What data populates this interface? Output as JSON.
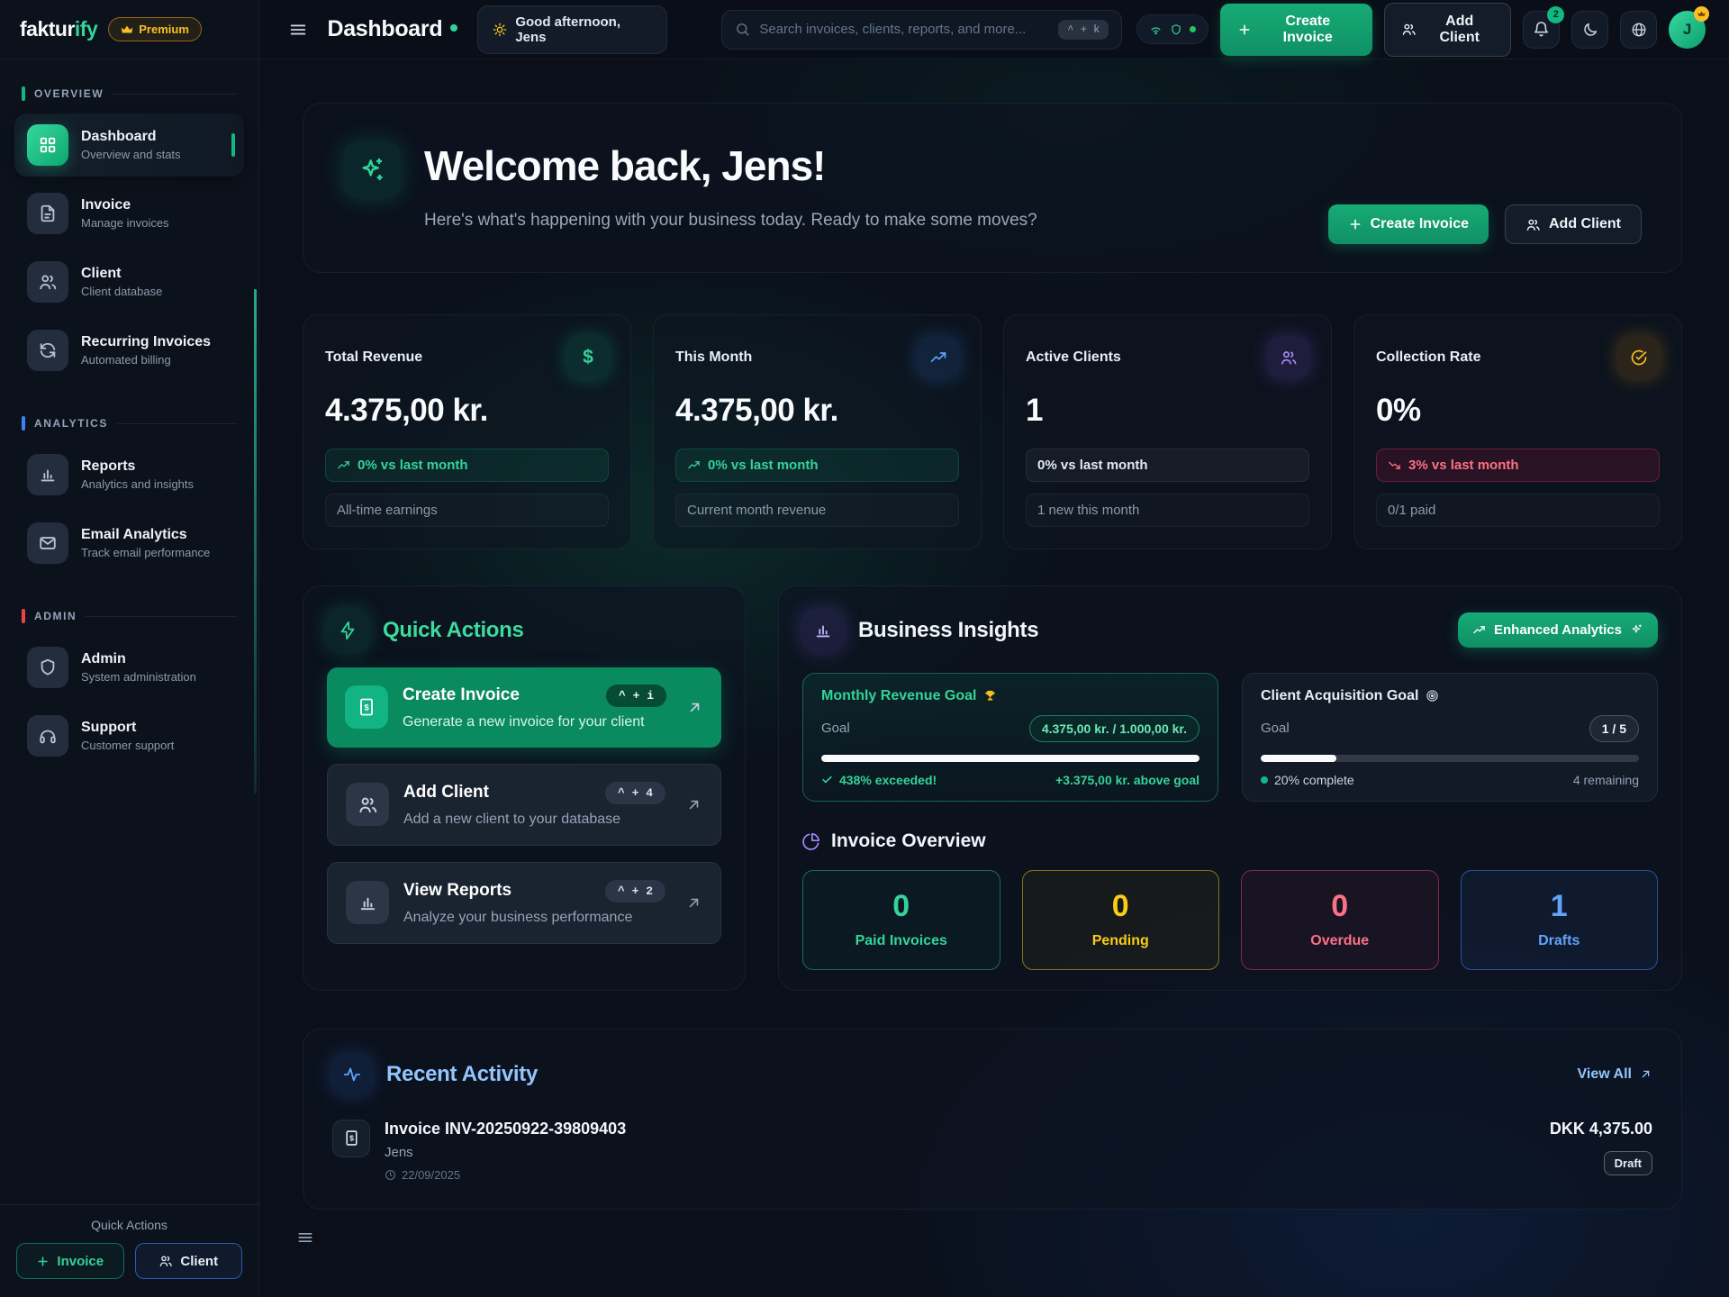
{
  "brand": {
    "name": "faktur",
    "name_accent": "ify",
    "premium_label": "Premium"
  },
  "header": {
    "title": "Dashboard",
    "greeting": "Good afternoon, Jens",
    "search_placeholder": "Search invoices, clients, reports, and more...",
    "search_shortcut": "^ + k",
    "create_invoice_label": "Create Invoice",
    "add_client_label": "Add Client",
    "notification_count": "2",
    "avatar_initial": "J"
  },
  "sidebar": {
    "sections": [
      {
        "label": "OVERVIEW",
        "items": [
          {
            "title": "Dashboard",
            "subtitle": "Overview and stats"
          },
          {
            "title": "Invoice",
            "subtitle": "Manage invoices"
          },
          {
            "title": "Client",
            "subtitle": "Client database"
          },
          {
            "title": "Recurring Invoices",
            "subtitle": "Automated billing"
          }
        ]
      },
      {
        "label": "ANALYTICS",
        "items": [
          {
            "title": "Reports",
            "subtitle": "Analytics and insights"
          },
          {
            "title": "Email Analytics",
            "subtitle": "Track email performance"
          }
        ]
      },
      {
        "label": "ADMIN",
        "items": [
          {
            "title": "Admin",
            "subtitle": "System administration"
          },
          {
            "title": "Support",
            "subtitle": "Customer support"
          }
        ]
      }
    ],
    "footer": {
      "label": "Quick Actions",
      "invoice_button": "Invoice",
      "client_button": "Client"
    }
  },
  "welcome": {
    "title": "Welcome back, Jens!",
    "subtitle": "Here's what's happening with your business today. Ready to make some moves?",
    "create_invoice_label": "Create Invoice",
    "add_client_label": "Add Client"
  },
  "stats": [
    {
      "label": "Total Revenue",
      "value": "4.375,00 kr.",
      "badge": "0% vs last month",
      "footer": "All-time earnings"
    },
    {
      "label": "This Month",
      "value": "4.375,00 kr.",
      "badge": "0% vs last month",
      "footer": "Current month revenue"
    },
    {
      "label": "Active Clients",
      "value": "1",
      "badge": "0% vs last month",
      "footer": "1 new this month"
    },
    {
      "label": "Collection Rate",
      "value": "0%",
      "badge": "3% vs last month",
      "footer": "0/1 paid"
    }
  ],
  "quick_actions": {
    "title": "Quick Actions",
    "actions": [
      {
        "title": "Create Invoice",
        "subtitle": "Generate a new invoice for your client",
        "shortcut": "^ + i"
      },
      {
        "title": "Add Client",
        "subtitle": "Add a new client to your database",
        "shortcut": "^ + 4"
      },
      {
        "title": "View Reports",
        "subtitle": "Analyze your business performance",
        "shortcut": "^ + 2"
      }
    ]
  },
  "insights": {
    "title": "Business Insights",
    "enhanced_button": "Enhanced Analytics",
    "revenue_goal": {
      "title": "Monthly Revenue Goal",
      "goal_label": "Goal",
      "value": "4.375,00 kr. / 1.000,00 kr.",
      "progress_pct": 100,
      "status_left": "438% exceeded!",
      "status_right": "+3.375,00 kr. above goal"
    },
    "client_goal": {
      "title": "Client Acquisition Goal",
      "goal_label": "Goal",
      "value": "1 / 5",
      "progress_pct": 20,
      "status_left": "20% complete",
      "status_right": "4 remaining"
    },
    "invoice_overview": {
      "title": "Invoice Overview",
      "boxes": [
        {
          "value": "0",
          "label": "Paid Invoices",
          "color": "#34d399"
        },
        {
          "value": "0",
          "label": "Pending",
          "color": "#facc15"
        },
        {
          "value": "0",
          "label": "Overdue",
          "color": "#fb7185"
        },
        {
          "value": "1",
          "label": "Drafts",
          "color": "#60a5fa"
        }
      ]
    }
  },
  "activity": {
    "title": "Recent Activity",
    "view_all_label": "View All",
    "items": [
      {
        "title": "Invoice INV-20250922-39809403",
        "client": "Jens",
        "date": "22/09/2025",
        "amount": "DKK 4,375.00",
        "status": "Draft"
      }
    ]
  },
  "colors": {
    "accent_green": "#10b981",
    "accent_purple": "#a78bfa",
    "accent_blue": "#60a5fa",
    "accent_yellow": "#facc15",
    "accent_red": "#fb7185",
    "accent_orange": "#f59e0b"
  }
}
